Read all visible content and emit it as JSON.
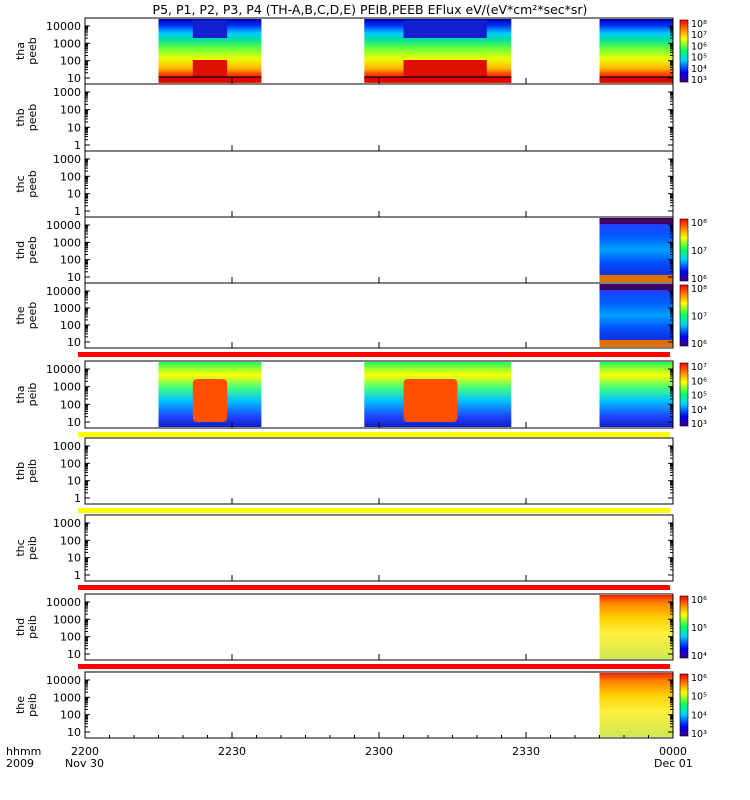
{
  "chart_data": {
    "type": "heatmap",
    "title": "P5, P1, P2, P3, P4 (TH-A,B,C,D,E) PEIB,PEEB EFlux eV/(eV*cm²*sec*sr)",
    "x_axis": {
      "unit_label": "hhmm",
      "year_label": "2009",
      "ticks": [
        "2200",
        "2230",
        "2300",
        "2330",
        "0000"
      ],
      "start_date_label": "Nov 30",
      "end_date_label": "Dec 01"
    },
    "panels": [
      {
        "label": "tha peeb",
        "y_ticks": [
          "10000",
          "1000",
          "100",
          "10"
        ],
        "colorbar_ticks": [
          "10⁸",
          "10⁷",
          "10⁶",
          "10⁵",
          "10⁴",
          "10³"
        ],
        "data_intervals": [
          [
            2215,
            2236
          ],
          [
            2257,
            2327
          ],
          [
            2345,
            2400
          ]
        ],
        "high_flux_intervals": [
          [
            2222,
            2229
          ],
          [
            2305,
            2322
          ]
        ],
        "quality_bar": null
      },
      {
        "label": "thb peeb",
        "y_ticks": [
          "1000",
          "100",
          "10",
          "1"
        ],
        "colorbar_ticks": [],
        "data_intervals": [],
        "high_flux_intervals": [],
        "quality_bar": null
      },
      {
        "label": "thc peeb",
        "y_ticks": [
          "1000",
          "100",
          "10",
          "1"
        ],
        "colorbar_ticks": [],
        "data_intervals": [],
        "high_flux_intervals": [],
        "quality_bar": null
      },
      {
        "label": "thd peeb",
        "y_ticks": [
          "10000",
          "1000",
          "100",
          "10"
        ],
        "colorbar_ticks": [
          "10⁸",
          "10⁷",
          "10⁶"
        ],
        "data_intervals": [
          [
            2345,
            2400
          ]
        ],
        "high_flux_intervals": [],
        "quality_bar": null
      },
      {
        "label": "the peeb",
        "y_ticks": [
          "10000",
          "1000",
          "100",
          "10"
        ],
        "colorbar_ticks": [
          "10⁸",
          "10⁷",
          "10⁶"
        ],
        "data_intervals": [
          [
            2345,
            2400
          ]
        ],
        "high_flux_intervals": [],
        "quality_bar": "#ff0000"
      },
      {
        "label": "tha peib",
        "y_ticks": [
          "10000",
          "1000",
          "100",
          "10"
        ],
        "colorbar_ticks": [
          "10⁷",
          "10⁶",
          "10⁵",
          "10⁴",
          "10³"
        ],
        "data_intervals": [
          [
            2215,
            2236
          ],
          [
            2257,
            2327
          ],
          [
            2345,
            2400
          ]
        ],
        "high_flux_intervals": [
          [
            2222,
            2229
          ],
          [
            2305,
            2316
          ]
        ],
        "quality_bar": "#ffff00"
      },
      {
        "label": "thb peib",
        "y_ticks": [
          "1000",
          "100",
          "10",
          "1"
        ],
        "colorbar_ticks": [],
        "data_intervals": [],
        "high_flux_intervals": [],
        "quality_bar": "#ffff00"
      },
      {
        "label": "thc peib",
        "y_ticks": [
          "1000",
          "100",
          "10",
          "1"
        ],
        "colorbar_ticks": [],
        "data_intervals": [],
        "high_flux_intervals": [],
        "quality_bar": "#ff0000"
      },
      {
        "label": "thd peib",
        "y_ticks": [
          "10000",
          "1000",
          "100",
          "10"
        ],
        "colorbar_ticks": [
          "10⁶",
          "10⁵",
          "10⁴"
        ],
        "data_intervals": [
          [
            2345,
            2400
          ]
        ],
        "high_flux_intervals": [],
        "quality_bar": "#ff0000"
      },
      {
        "label": "the peib",
        "y_ticks": [
          "10000",
          "1000",
          "100",
          "10"
        ],
        "colorbar_ticks": [
          "10⁶",
          "10⁵",
          "10⁴",
          "10³"
        ],
        "data_intervals": [
          [
            2345,
            2400
          ]
        ],
        "high_flux_intervals": [],
        "quality_bar": null
      }
    ]
  }
}
